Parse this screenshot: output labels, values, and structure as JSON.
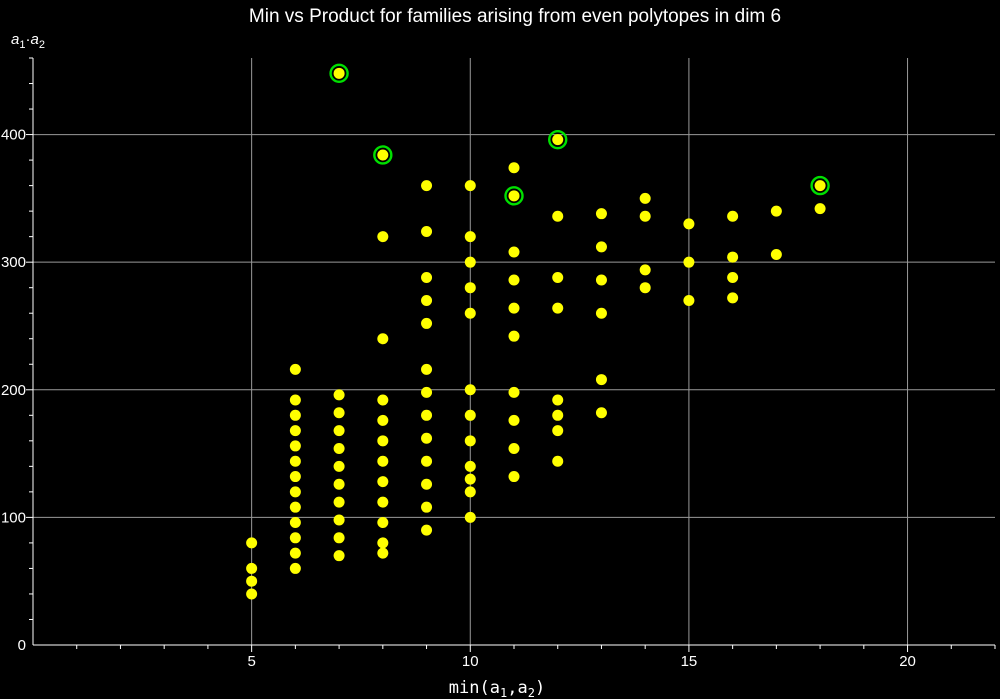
{
  "chart_data": {
    "type": "scatter",
    "title": "Min vs Product for families arising from even polytopes in dim 6",
    "xlabel": {
      "func": "min",
      "open": "(",
      "a": "a",
      "sub1": "1",
      "sep": ",",
      "b": "a",
      "sub2": "2",
      "close": ")"
    },
    "ylabel": {
      "a": "a",
      "sub1": "1",
      "dot": "·",
      "b": "a",
      "sub2": "2"
    },
    "xlim": [
      0,
      22
    ],
    "ylim": [
      0,
      460
    ],
    "x_ticks": [
      "5",
      "10",
      "15",
      "20"
    ],
    "y_ticks": [
      "0",
      "100",
      "200",
      "300",
      "400"
    ],
    "grid": true,
    "colors": {
      "point": "#ffff00",
      "highlight_ring": "#00e000",
      "grid": "#9a9a9a",
      "axis": "#ffffff",
      "background": "#000000"
    },
    "series": [
      {
        "points": [
          [
            5,
            40
          ],
          [
            5,
            50
          ],
          [
            5,
            60
          ],
          [
            5,
            80
          ],
          [
            6,
            60
          ],
          [
            6,
            72
          ],
          [
            6,
            84
          ],
          [
            6,
            96
          ],
          [
            6,
            108
          ],
          [
            6,
            120
          ],
          [
            6,
            132
          ],
          [
            6,
            144
          ],
          [
            6,
            156
          ],
          [
            6,
            168
          ],
          [
            6,
            180
          ],
          [
            6,
            192
          ],
          [
            6,
            216
          ],
          [
            7,
            70
          ],
          [
            7,
            84
          ],
          [
            7,
            98
          ],
          [
            7,
            112
          ],
          [
            7,
            126
          ],
          [
            7,
            140
          ],
          [
            7,
            154
          ],
          [
            7,
            168
          ],
          [
            7,
            182
          ],
          [
            7,
            196
          ],
          [
            7,
            448
          ],
          [
            8,
            72
          ],
          [
            8,
            80
          ],
          [
            8,
            96
          ],
          [
            8,
            112
          ],
          [
            8,
            128
          ],
          [
            8,
            144
          ],
          [
            8,
            160
          ],
          [
            8,
            176
          ],
          [
            8,
            192
          ],
          [
            8,
            240
          ],
          [
            8,
            320
          ],
          [
            8,
            384
          ],
          [
            9,
            90
          ],
          [
            9,
            108
          ],
          [
            9,
            126
          ],
          [
            9,
            144
          ],
          [
            9,
            162
          ],
          [
            9,
            180
          ],
          [
            9,
            198
          ],
          [
            9,
            216
          ],
          [
            9,
            252
          ],
          [
            9,
            270
          ],
          [
            9,
            288
          ],
          [
            9,
            324
          ],
          [
            9,
            360
          ],
          [
            10,
            100
          ],
          [
            10,
            120
          ],
          [
            10,
            130
          ],
          [
            10,
            140
          ],
          [
            10,
            160
          ],
          [
            10,
            180
          ],
          [
            10,
            200
          ],
          [
            10,
            260
          ],
          [
            10,
            280
          ],
          [
            10,
            300
          ],
          [
            10,
            320
          ],
          [
            10,
            360
          ],
          [
            11,
            132
          ],
          [
            11,
            154
          ],
          [
            11,
            176
          ],
          [
            11,
            198
          ],
          [
            11,
            242
          ],
          [
            11,
            264
          ],
          [
            11,
            286
          ],
          [
            11,
            308
          ],
          [
            11,
            352
          ],
          [
            11,
            374
          ],
          [
            12,
            144
          ],
          [
            12,
            168
          ],
          [
            12,
            180
          ],
          [
            12,
            192
          ],
          [
            12,
            264
          ],
          [
            12,
            288
          ],
          [
            12,
            336
          ],
          [
            12,
            396
          ],
          [
            13,
            182
          ],
          [
            13,
            208
          ],
          [
            13,
            260
          ],
          [
            13,
            286
          ],
          [
            13,
            312
          ],
          [
            13,
            338
          ],
          [
            14,
            280
          ],
          [
            14,
            294
          ],
          [
            14,
            336
          ],
          [
            14,
            350
          ],
          [
            15,
            270
          ],
          [
            15,
            300
          ],
          [
            15,
            330
          ],
          [
            16,
            272
          ],
          [
            16,
            288
          ],
          [
            16,
            304
          ],
          [
            16,
            336
          ],
          [
            17,
            306
          ],
          [
            17,
            340
          ],
          [
            18,
            342
          ],
          [
            18,
            360
          ]
        ]
      },
      {
        "highlighted": true,
        "points": [
          [
            7,
            448
          ],
          [
            8,
            384
          ],
          [
            11,
            352
          ],
          [
            12,
            396
          ],
          [
            18,
            360
          ]
        ]
      }
    ]
  }
}
